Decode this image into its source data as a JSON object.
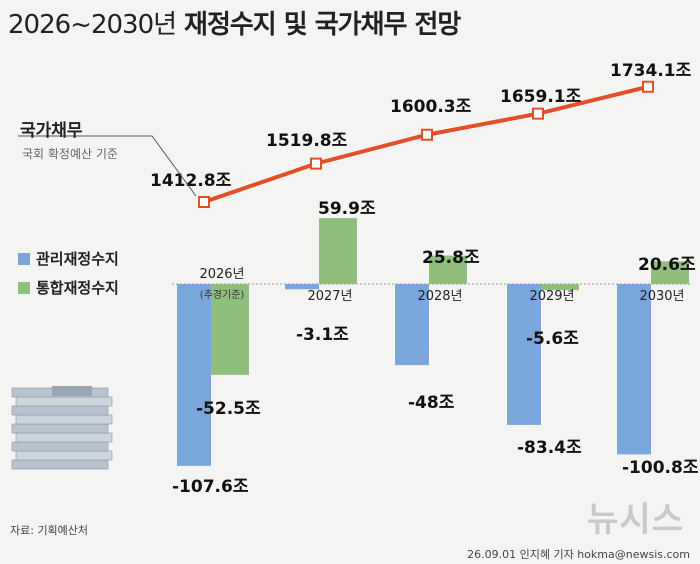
{
  "title": {
    "years": "2026~2030년",
    "main": "재정수지 및 국가채무 전망"
  },
  "debt_label": "국가채무",
  "debt_sub": "국회 확정예산 기준",
  "legend": [
    {
      "name": "관리재정수지",
      "color": "#7ba6dc"
    },
    {
      "name": "통합재정수지",
      "color": "#8fbe7d"
    }
  ],
  "source": "자료: 기획예산처",
  "credit": "26.09.01  인지혜 기자  hokma@newsis.com",
  "watermark": "뉴시스",
  "colors": {
    "debt_line": "#e2502a",
    "managed": "#7ba6dc",
    "integrated": "#8fbe7d"
  },
  "chart_data": {
    "type": "bar",
    "categories": [
      "2026년",
      "2027년",
      "2028년",
      "2029년",
      "2030년"
    ],
    "category_notes": [
      "(추경기준)",
      "",
      "",
      "",
      ""
    ],
    "unit": "조",
    "series": [
      {
        "name": "관리재정수지",
        "values": [
          -107.6,
          -3.1,
          -48,
          -83.4,
          -100.8
        ],
        "labels": [
          "-107.6조",
          "-3.1조",
          "-48조",
          "-83.4조",
          "-100.8조"
        ]
      },
      {
        "name": "통합재정수지",
        "values": [
          -52.5,
          59.9,
          25.8,
          -5.6,
          20.6
        ],
        "labels": [
          "-52.5조",
          "59.9조",
          "25.8조",
          "-5.6조",
          "20.6조"
        ]
      }
    ],
    "line": {
      "name": "국가채무",
      "values": [
        1412.8,
        1519.8,
        1600.3,
        1659.1,
        1734.1
      ],
      "labels": [
        "1412.8조",
        "1519.8조",
        "1600.3조",
        "1659.1조",
        "1734.1조"
      ]
    }
  }
}
